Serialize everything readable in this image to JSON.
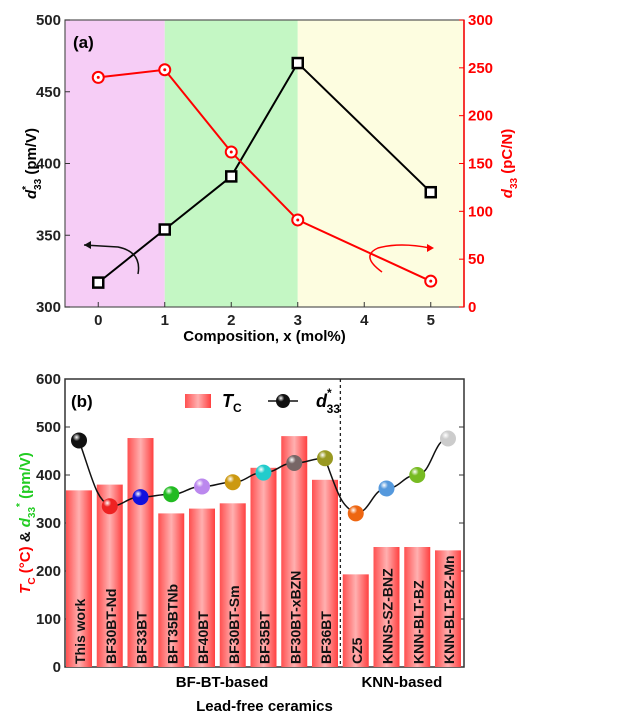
{
  "chart_data": [
    {
      "type": "line",
      "panel_label": "(a)",
      "xlabel": "Composition, x (mol%)",
      "ylabel_left": {
        "main": "d",
        "sup": "*",
        "sub": "33",
        "unit": " (pm/V)"
      },
      "ylabel_right": {
        "main": "d",
        "sub": "33",
        "unit": " (pC/N)"
      },
      "xlim": [
        -0.5,
        5.5
      ],
      "xticks": [
        0,
        1,
        2,
        3,
        4,
        5
      ],
      "ylim_left": [
        300,
        500
      ],
      "yticks_left": [
        300,
        350,
        400,
        450,
        500
      ],
      "ylim_right": [
        0,
        300
      ],
      "yticks_right": [
        0,
        50,
        100,
        150,
        200,
        250,
        300
      ],
      "regions": [
        {
          "from": -0.5,
          "to": 1,
          "color": "#f6cdf6"
        },
        {
          "from": 1,
          "to": 3,
          "color": "#c4f7c4"
        },
        {
          "from": 3,
          "to": 5.5,
          "color": "#fdfde0"
        }
      ],
      "series": [
        {
          "name": "d33*",
          "axis": "left",
          "color": "#000000",
          "marker": "square",
          "x": [
            0,
            1,
            2,
            3,
            5
          ],
          "y": [
            317,
            354,
            391,
            470,
            380
          ]
        },
        {
          "name": "d33",
          "axis": "right",
          "color": "#ff0000",
          "marker": "circle-dot",
          "x": [
            0,
            1,
            2,
            3,
            5
          ],
          "y": [
            240,
            248,
            162,
            91,
            27
          ]
        }
      ]
    },
    {
      "type": "bar",
      "panel_label": "(b)",
      "xlabel": "Lead-free ceramics",
      "ylabel": {
        "tc": "T",
        "tc_sub": "C",
        "tc_unit": " (°C)",
        "amp": " & ",
        "d": "d",
        "d_sub": "33",
        "d_sup": "*",
        "d_unit": " (pm/V)"
      },
      "ylim": [
        0,
        600
      ],
      "yticks": [
        0,
        100,
        200,
        300,
        400,
        500,
        600
      ],
      "legend": {
        "tc": "T",
        "tc_sub": "C",
        "d": "d",
        "d_sub": "33",
        "d_sup": "*",
        "position": "top-center"
      },
      "groups": [
        {
          "label": "BF-BT-based",
          "from": 0,
          "to": 8
        },
        {
          "label": "KNN-based",
          "from": 9,
          "to": 12
        }
      ],
      "categories": [
        "This work",
        "BF30BT-Nd",
        "BF33BT",
        "BFT35BTNb",
        "BF40BT",
        "BF30BT-Sm",
        "BF35BT",
        "BF30BT-xBZN",
        "BF36BT",
        "CZ5",
        "KNNS-SZ-BNZ",
        "KNN-BLT-BZ",
        "KNN-BLT-BZ-Mn"
      ],
      "series": [
        {
          "name": "Tc",
          "type": "bar",
          "color": "#ff3333",
          "values": [
            368,
            380,
            477,
            320,
            330,
            341,
            415,
            481,
            390,
            193,
            250,
            250,
            243
          ]
        },
        {
          "name": "d33*",
          "type": "line",
          "values": [
            472,
            335,
            354,
            360,
            376,
            385,
            405,
            425,
            435,
            320,
            372,
            400,
            476
          ],
          "marker_colors": [
            "#111111",
            "#ee2222",
            "#1111dd",
            "#22bb22",
            "#bb88ee",
            "#cc9911",
            "#22cccc",
            "#776666",
            "#999922",
            "#ee6611",
            "#5599dd",
            "#77bb22",
            "#cccccc"
          ]
        }
      ]
    }
  ]
}
